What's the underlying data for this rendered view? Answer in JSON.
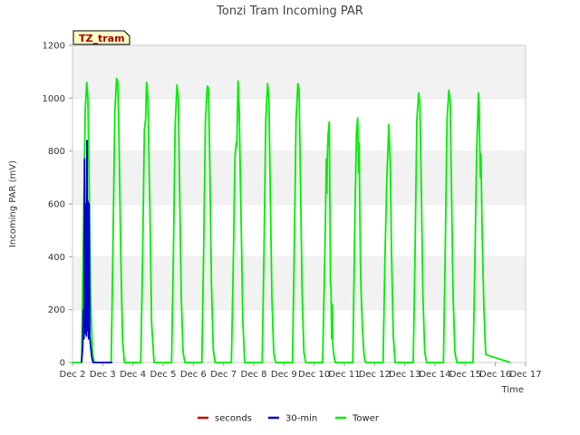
{
  "chart_data": {
    "type": "line",
    "title": "Tonzi Tram Incoming PAR",
    "xlabel": "Time",
    "ylabel": "Incoming PAR (mV)",
    "site_tag": "TZ_tram",
    "ylim": [
      0,
      1200
    ],
    "xlim": [
      0,
      15
    ],
    "yticks": [
      0,
      200,
      400,
      600,
      800,
      1000,
      1200
    ],
    "x_ticks": [
      {
        "x": 0,
        "label": "Dec 2"
      },
      {
        "x": 1,
        "label": "Dec 3"
      },
      {
        "x": 2,
        "label": "Dec 4"
      },
      {
        "x": 3,
        "label": "Dec 5"
      },
      {
        "x": 4,
        "label": "Dec 6"
      },
      {
        "x": 5,
        "label": "Dec 7"
      },
      {
        "x": 6,
        "label": "Dec 8"
      },
      {
        "x": 7,
        "label": "Dec 9"
      },
      {
        "x": 8,
        "label": "Dec 10"
      },
      {
        "x": 9,
        "label": "Dec 11"
      },
      {
        "x": 10,
        "label": "Dec 12"
      },
      {
        "x": 11,
        "label": "Dec 13"
      },
      {
        "x": 12,
        "label": "Dec 14"
      },
      {
        "x": 13,
        "label": "Dec 15"
      },
      {
        "x": 14,
        "label": "Dec 16"
      },
      {
        "x": 15,
        "label": "Dec 17"
      }
    ],
    "grid": "horizontal bands",
    "legend_position": "bottom",
    "series": [
      {
        "name": "seconds",
        "color": "#cc0000",
        "x": [],
        "y": []
      },
      {
        "name": "30-min",
        "color": "#0000cc",
        "x": [
          0.3,
          0.34,
          0.36,
          0.38,
          0.4,
          0.42,
          0.43,
          0.45,
          0.46,
          0.48,
          0.5,
          0.51,
          0.52,
          0.53,
          0.55,
          0.57,
          0.6,
          0.64,
          0.68,
          1.3,
          1.32
        ],
        "y": [
          0,
          60,
          200,
          90,
          770,
          110,
          600,
          180,
          100,
          840,
          120,
          610,
          200,
          90,
          600,
          100,
          60,
          20,
          0,
          0,
          0
        ]
      },
      {
        "name": "Tower",
        "color": "#00ee00",
        "x": [
          0,
          0.3,
          0.36,
          0.42,
          0.47,
          0.51,
          0.55,
          0.6,
          0.66,
          0.72,
          1.28,
          1.34,
          1.4,
          1.46,
          1.5,
          1.54,
          1.6,
          1.66,
          1.72,
          2.26,
          2.32,
          2.38,
          2.42,
          2.45,
          2.47,
          2.5,
          2.56,
          2.62,
          2.7,
          3.28,
          3.34,
          3.4,
          3.46,
          3.5,
          3.54,
          3.6,
          3.66,
          3.72,
          4.28,
          4.34,
          4.4,
          4.46,
          4.5,
          4.54,
          4.6,
          4.66,
          4.72,
          5.26,
          5.32,
          5.38,
          5.42,
          5.44,
          5.48,
          5.52,
          5.58,
          5.64,
          5.7,
          6.28,
          6.34,
          6.4,
          6.46,
          6.5,
          6.54,
          6.6,
          6.66,
          6.72,
          7.28,
          7.34,
          7.4,
          7.46,
          7.5,
          7.54,
          7.6,
          7.66,
          7.72,
          8.28,
          8.36,
          8.38,
          8.4,
          8.42,
          8.44,
          8.46,
          8.5,
          8.52,
          8.54,
          8.56,
          8.58,
          8.6,
          8.62,
          8.66,
          8.7,
          9.28,
          9.34,
          9.4,
          9.44,
          9.47,
          9.49,
          9.51,
          9.53,
          9.55,
          9.6,
          9.65,
          9.7,
          10.28,
          10.34,
          10.4,
          10.44,
          10.47,
          10.52,
          10.56,
          10.62,
          10.68,
          11.28,
          11.34,
          11.4,
          11.46,
          11.5,
          11.54,
          11.6,
          11.66,
          11.72,
          12.28,
          12.34,
          12.4,
          12.46,
          12.5,
          12.54,
          12.6,
          12.66,
          12.72,
          13.26,
          13.32,
          13.38,
          13.44,
          13.46,
          13.48,
          13.5,
          13.52,
          13.56,
          13.62,
          13.68,
          14.5
        ],
        "y": [
          0,
          0,
          480,
          950,
          1060,
          1000,
          700,
          250,
          40,
          0,
          0,
          450,
          950,
          1075,
          1060,
          850,
          400,
          80,
          0,
          0,
          380,
          880,
          920,
          1060,
          1050,
          980,
          600,
          150,
          0,
          0,
          400,
          900,
          1050,
          1000,
          700,
          250,
          40,
          0,
          0,
          420,
          920,
          1045,
          1040,
          800,
          300,
          50,
          0,
          0,
          350,
          780,
          830,
          820,
          1065,
          950,
          550,
          150,
          0,
          0,
          420,
          920,
          1055,
          1000,
          700,
          250,
          40,
          0,
          0,
          420,
          920,
          1055,
          1030,
          750,
          280,
          40,
          0,
          0,
          450,
          580,
          770,
          640,
          790,
          860,
          910,
          620,
          300,
          280,
          90,
          220,
          60,
          20,
          0,
          0,
          480,
          870,
          925,
          720,
          830,
          600,
          380,
          290,
          120,
          30,
          0,
          0,
          380,
          680,
          800,
          900,
          750,
          420,
          100,
          0,
          0,
          420,
          920,
          1020,
          980,
          700,
          250,
          40,
          0,
          0,
          420,
          920,
          1030,
          990,
          700,
          250,
          40,
          0,
          0,
          380,
          800,
          1020,
          980,
          840,
          700,
          790,
          500,
          200,
          30,
          0
        ]
      }
    ]
  }
}
